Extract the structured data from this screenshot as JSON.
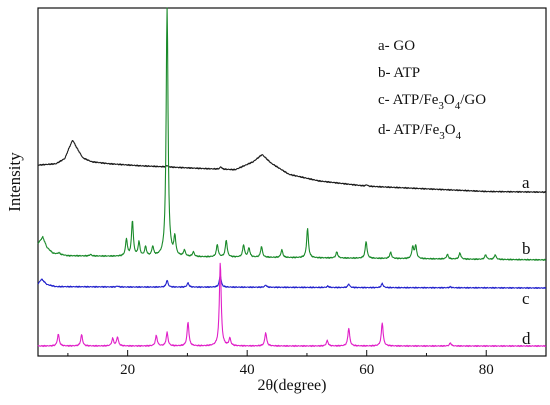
{
  "chart_data": {
    "type": "line",
    "xlabel": "2θ(degree)",
    "ylabel": "Intensity",
    "xlim": [
      5,
      90
    ],
    "xticks": [
      20,
      40,
      60,
      80
    ],
    "yticks_visible": false,
    "grid": false,
    "legend_position": "top-right",
    "legend": [
      {
        "prefix": "a- ",
        "text": "GO"
      },
      {
        "prefix": "b- ",
        "text": "ATP"
      },
      {
        "prefix": "c- ",
        "text": "ATP/Fe",
        "sub1": "3",
        "mid": "O",
        "sub2": "4",
        "tail": "/GO"
      },
      {
        "prefix": "d- ",
        "text": "ATP/Fe",
        "sub1": "3",
        "mid": "O",
        "sub2": "4",
        "tail": ""
      }
    ],
    "series": [
      {
        "id": "a",
        "label": "a",
        "color": "#1a1a1a",
        "baseline": [
          [
            5,
            0.38
          ],
          [
            8,
            0.36
          ],
          [
            9.5,
            0.28
          ],
          [
            10.2,
            0.12
          ],
          [
            10.8,
            0.0
          ],
          [
            11.5,
            0.12
          ],
          [
            12.5,
            0.27
          ],
          [
            14,
            0.33
          ],
          [
            17,
            0.36
          ],
          [
            22,
            0.39
          ],
          [
            27,
            0.41
          ],
          [
            32,
            0.43
          ],
          [
            38,
            0.45
          ],
          [
            41,
            0.33
          ],
          [
            42.5,
            0.22
          ],
          [
            44,
            0.35
          ],
          [
            47,
            0.52
          ],
          [
            52,
            0.62
          ],
          [
            60,
            0.7
          ],
          [
            70,
            0.74
          ],
          [
            80,
            0.78
          ],
          [
            90,
            0.79
          ]
        ],
        "peaks": [
          [
            26.6,
            0.05
          ],
          [
            35.6,
            0.08
          ],
          [
            60,
            0.05
          ]
        ]
      },
      {
        "id": "b",
        "label": "b",
        "color": "#1a8a2a",
        "baseline": [
          [
            5,
            0.25
          ],
          [
            5.8,
            0.0
          ],
          [
            6.5,
            0.4
          ],
          [
            7.5,
            0.62
          ],
          [
            10,
            0.72
          ],
          [
            20,
            0.75
          ],
          [
            40,
            0.78
          ],
          [
            60,
            0.82
          ],
          [
            80,
            0.86
          ],
          [
            90,
            0.88
          ]
        ],
        "peaks": [
          [
            8.5,
            0.05
          ],
          [
            13.8,
            0.05
          ],
          [
            19.8,
            0.55
          ],
          [
            20.8,
            1.15
          ],
          [
            21.9,
            0.45
          ],
          [
            23.0,
            0.3
          ],
          [
            24.2,
            0.3
          ],
          [
            26.6,
            8.3
          ],
          [
            27.9,
            0.6
          ],
          [
            29.5,
            0.2
          ],
          [
            31.0,
            0.15
          ],
          [
            35.0,
            0.4
          ],
          [
            36.5,
            0.55
          ],
          [
            39.4,
            0.4
          ],
          [
            40.3,
            0.3
          ],
          [
            42.4,
            0.35
          ],
          [
            45.8,
            0.25
          ],
          [
            50.1,
            0.95
          ],
          [
            55.0,
            0.2
          ],
          [
            59.9,
            0.55
          ],
          [
            64.0,
            0.2
          ],
          [
            67.7,
            0.38
          ],
          [
            68.2,
            0.42
          ],
          [
            73.5,
            0.15
          ],
          [
            75.6,
            0.2
          ],
          [
            79.9,
            0.15
          ],
          [
            81.5,
            0.15
          ]
        ]
      },
      {
        "id": "c",
        "label": "c",
        "color": "#2222cc",
        "baseline": [
          [
            5,
            0.6
          ],
          [
            5.6,
            0.1
          ],
          [
            6.5,
            0.65
          ],
          [
            8,
            0.86
          ],
          [
            20,
            0.9
          ],
          [
            40,
            0.92
          ],
          [
            60,
            0.96
          ],
          [
            80,
            0.98
          ],
          [
            90,
            1.0
          ]
        ],
        "peaks": [
          [
            18.3,
            0.08
          ],
          [
            26.6,
            0.62
          ],
          [
            30.1,
            0.38
          ],
          [
            35.5,
            1.08
          ],
          [
            43.1,
            0.2
          ],
          [
            53.5,
            0.12
          ],
          [
            57.0,
            0.32
          ],
          [
            62.6,
            0.38
          ],
          [
            74.0,
            0.08
          ]
        ]
      },
      {
        "id": "d",
        "label": "d",
        "color": "#e020c8",
        "baseline": [
          [
            5,
            0.02
          ],
          [
            90,
            0.02
          ]
        ],
        "peaks": [
          [
            8.4,
            0.4
          ],
          [
            12.3,
            0.38
          ],
          [
            17.5,
            0.25
          ],
          [
            18.3,
            0.3
          ],
          [
            24.8,
            0.35
          ],
          [
            26.6,
            0.45
          ],
          [
            30.1,
            0.8
          ],
          [
            35.5,
            2.8
          ],
          [
            37.1,
            0.25
          ],
          [
            43.1,
            0.45
          ],
          [
            53.4,
            0.18
          ],
          [
            57.0,
            0.6
          ],
          [
            62.6,
            0.78
          ],
          [
            74.0,
            0.1
          ]
        ]
      }
    ]
  }
}
